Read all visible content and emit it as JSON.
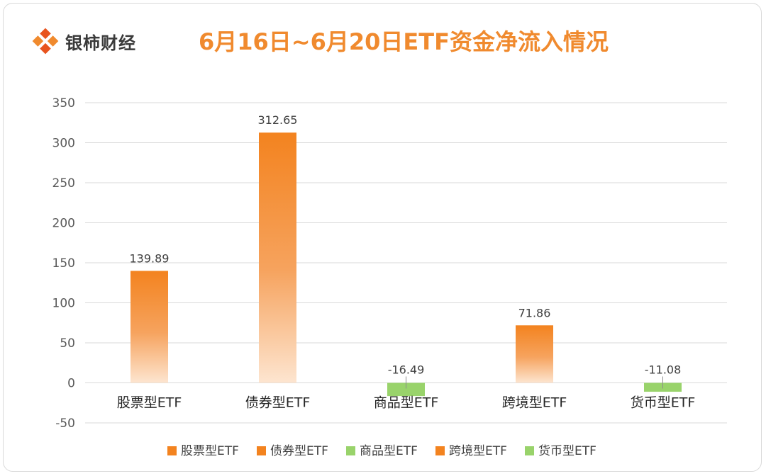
{
  "brand": {
    "name": "银柿财经",
    "logo_icon": "brand-diamond-logo"
  },
  "colors": {
    "positive_top": "#f3831f",
    "positive_bottom": "#fde5d0",
    "negative": "#99d36b",
    "title": "#f08a2e",
    "grid": "#d9d9d9"
  },
  "chart_data": {
    "type": "bar",
    "title": "6月16日~6月20日ETF资金净流入情况",
    "categories": [
      "股票型ETF",
      "债券型ETF",
      "商品型ETF",
      "跨境型ETF",
      "货币型ETF"
    ],
    "values": [
      139.89,
      312.65,
      -16.49,
      71.86,
      -11.08
    ],
    "value_labels": [
      "139.89",
      "312.65",
      "-16.49",
      "71.86",
      "-11.08"
    ],
    "ylim": [
      -50,
      350
    ],
    "yticks": [
      350,
      300,
      250,
      200,
      150,
      100,
      50,
      0,
      -50
    ],
    "xlabel": "",
    "ylabel": "",
    "grid": true,
    "legend": {
      "position": "bottom",
      "entries": [
        "股票型ETF",
        "债券型ETF",
        "商品型ETF",
        "跨境型ETF",
        "货币型ETF"
      ],
      "colors": [
        "#f3831f",
        "#f3831f",
        "#99d36b",
        "#f3831f",
        "#99d36b"
      ]
    }
  }
}
